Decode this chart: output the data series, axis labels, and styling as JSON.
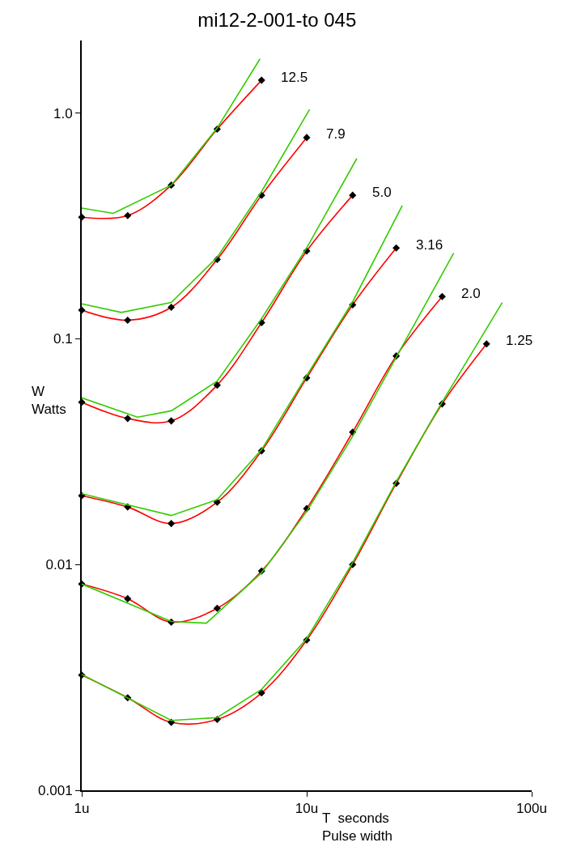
{
  "chart_data": {
    "type": "line",
    "title": "mi12-2-001-to 045",
    "xlabel": "T  seconds\nPulse width",
    "ylabel": "W\nWatts",
    "log": "xy",
    "legend": false,
    "xlim": [
      1,
      100
    ],
    "ylim": [
      0.001,
      2.1
    ],
    "xticks": [
      {
        "value": 1,
        "label": "1u"
      },
      {
        "value": 10,
        "label": "10u"
      },
      {
        "value": 100,
        "label": "100u"
      }
    ],
    "yticks": [
      0.001,
      0.01,
      0.1,
      {
        "value": 1,
        "label": "1.0"
      }
    ],
    "series": [
      {
        "name": "12.5",
        "color": "#ff0000",
        "marker": "none",
        "x": [
          1,
          1.6,
          2.5,
          4,
          6.3
        ],
        "values": [
          0.346,
          0.352,
          0.48,
          0.85,
          1.4
        ]
      },
      {
        "type": "scatter",
        "color": "#000000",
        "marker": "diamond",
        "x": [
          1,
          1.6,
          2.5,
          4,
          6.3
        ],
        "values": [
          0.346,
          0.352,
          0.48,
          0.85,
          1.4
        ]
      },
      {
        "type": "step",
        "color": "#33cc00",
        "marker": "none",
        "x": [
          1,
          1.38,
          2.5,
          4,
          6.2
        ],
        "values": [
          0.38,
          0.36,
          0.48,
          0.86,
          1.74
        ]
      },
      {
        "name": "7.9",
        "color": "#ff0000",
        "marker": "none",
        "x": [
          1,
          1.6,
          2.5,
          4,
          6.3,
          10
        ],
        "values": [
          0.134,
          0.121,
          0.138,
          0.225,
          0.433,
          0.78
        ]
      },
      {
        "type": "scatter",
        "color": "#000000",
        "marker": "diamond",
        "x": [
          1,
          1.6,
          2.5,
          4,
          6.3,
          10
        ],
        "values": [
          0.134,
          0.121,
          0.138,
          0.225,
          0.433,
          0.78
        ]
      },
      {
        "type": "step",
        "color": "#33cc00",
        "marker": "none",
        "x": [
          1,
          1.5,
          2.5,
          4,
          6.3,
          10.3
        ],
        "values": [
          0.143,
          0.131,
          0.145,
          0.23,
          0.45,
          1.04
        ]
      },
      {
        "name": "5.0",
        "color": "#ff0000",
        "marker": "none",
        "x": [
          1,
          1.6,
          2.5,
          4,
          6.3,
          10,
          16
        ],
        "values": [
          0.0524,
          0.0444,
          0.0433,
          0.0624,
          0.118,
          0.245,
          0.433
        ]
      },
      {
        "type": "scatter",
        "color": "#000000",
        "marker": "diamond",
        "x": [
          1,
          1.6,
          2.5,
          4,
          6.3,
          10,
          16
        ],
        "values": [
          0.0524,
          0.0444,
          0.0433,
          0.0624,
          0.118,
          0.245,
          0.433
        ]
      },
      {
        "type": "step",
        "color": "#33cc00",
        "marker": "none",
        "x": [
          1,
          1.77,
          2.5,
          4,
          6.3,
          10,
          16.7
        ],
        "values": [
          0.0548,
          0.045,
          0.048,
          0.065,
          0.123,
          0.253,
          0.63
        ]
      },
      {
        "name": "3.16",
        "color": "#ff0000",
        "marker": "none",
        "x": [
          1,
          1.6,
          2.5,
          4,
          6.3,
          10,
          16,
          25
        ],
        "values": [
          0.0202,
          0.018,
          0.0152,
          0.0189,
          0.0319,
          0.0672,
          0.1416,
          0.253
        ]
      },
      {
        "type": "scatter",
        "color": "#000000",
        "marker": "diamond",
        "x": [
          1,
          1.6,
          2.5,
          4,
          6.3,
          10,
          16,
          25
        ],
        "values": [
          0.0202,
          0.018,
          0.0152,
          0.0189,
          0.0319,
          0.0672,
          0.1416,
          0.253
        ]
      },
      {
        "type": "step",
        "color": "#33cc00",
        "marker": "none",
        "x": [
          1,
          2.5,
          4,
          6.3,
          10,
          16,
          26.6
        ],
        "values": [
          0.0206,
          0.0165,
          0.0194,
          0.0323,
          0.0688,
          0.146,
          0.39
        ]
      },
      {
        "name": "2.0",
        "color": "#ff0000",
        "marker": "none",
        "x": [
          1,
          1.6,
          2.5,
          4,
          6.3,
          10,
          16,
          25,
          40
        ],
        "values": [
          0.0082,
          0.00706,
          0.00556,
          0.0064,
          0.00936,
          0.0177,
          0.0386,
          0.084,
          0.154
        ]
      },
      {
        "type": "scatter",
        "color": "#000000",
        "marker": "diamond",
        "x": [
          1,
          1.6,
          2.5,
          4,
          6.3,
          10,
          16,
          25,
          40
        ],
        "values": [
          0.0082,
          0.00706,
          0.00556,
          0.0064,
          0.00936,
          0.0177,
          0.0386,
          0.084,
          0.154
        ]
      },
      {
        "type": "step",
        "color": "#33cc00",
        "marker": "none",
        "x": [
          1,
          2.5,
          3.58,
          6.3,
          10,
          16,
          25,
          45
        ],
        "values": [
          0.0082,
          0.0056,
          0.0055,
          0.0092,
          0.0172,
          0.037,
          0.083,
          0.24
        ]
      },
      {
        "name": "1.25",
        "color": "#ff0000",
        "marker": "none",
        "x": [
          1,
          1.6,
          2.5,
          4,
          6.3,
          10,
          16,
          25,
          40,
          63
        ],
        "values": [
          0.00324,
          0.00257,
          0.002,
          0.00206,
          0.0027,
          0.00463,
          0.01,
          0.0229,
          0.0515,
          0.095
        ]
      },
      {
        "type": "scatter",
        "color": "#000000",
        "marker": "diamond",
        "x": [
          1,
          1.6,
          2.5,
          4,
          6.3,
          10,
          16,
          25,
          40,
          63
        ],
        "values": [
          0.00324,
          0.00257,
          0.002,
          0.00206,
          0.0027,
          0.00463,
          0.01,
          0.0229,
          0.0515,
          0.095
        ]
      },
      {
        "type": "step",
        "color": "#33cc00",
        "marker": "none",
        "x": [
          1,
          2.5,
          4,
          6.3,
          10,
          16,
          25,
          40,
          74
        ],
        "values": [
          0.00326,
          0.00204,
          0.0021,
          0.0028,
          0.0047,
          0.0102,
          0.0233,
          0.0525,
          0.145
        ]
      }
    ]
  }
}
